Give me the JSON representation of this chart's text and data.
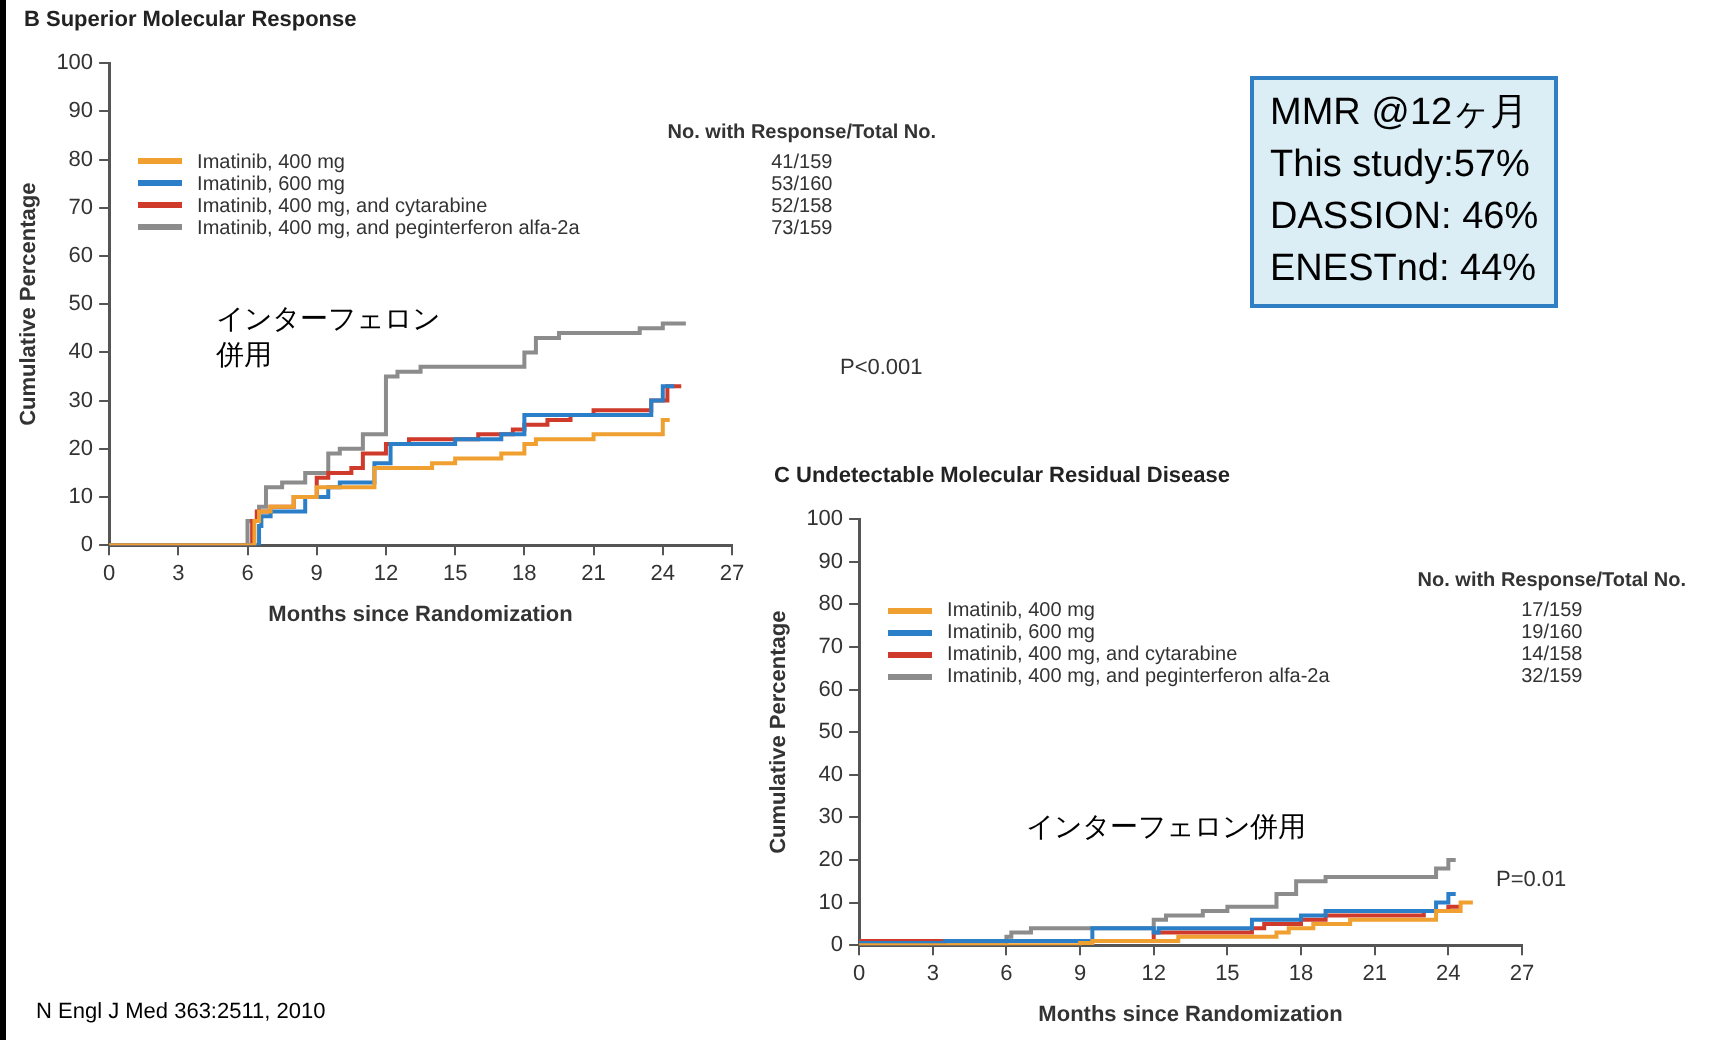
{
  "chart_data": [
    {
      "type": "step",
      "title": "B  Superior Molecular Response",
      "xlabel": "Months since Randomization",
      "ylabel": "Cumulative Percentage",
      "legend_title": "No. with Response/Total No.",
      "xlim": [
        0,
        27
      ],
      "ylim": [
        0,
        100
      ],
      "xticks": [
        0,
        3,
        6,
        9,
        12,
        15,
        18,
        21,
        24,
        27
      ],
      "yticks": [
        0,
        10,
        20,
        30,
        40,
        50,
        60,
        70,
        80,
        90,
        100
      ],
      "legend": "top left",
      "grid": false,
      "series": [
        {
          "name": "Imatinib, 400 mg",
          "color": "#f0a030",
          "x": [
            0,
            6.3,
            6.5,
            7,
            8,
            9,
            9.7,
            11.5,
            12.3,
            14,
            15,
            17,
            18,
            18.5,
            19,
            21,
            22,
            24,
            24.3
          ],
          "values": [
            0,
            0,
            5,
            7,
            8,
            10,
            12,
            12,
            16,
            16,
            17,
            18,
            19,
            21,
            22,
            22,
            23,
            23,
            26
          ]
        },
        {
          "name": "Imatinib, 600 mg",
          "color": "#2a7fc8",
          "x": [
            0,
            6.5,
            6.6,
            7,
            8.5,
            9.5,
            10,
            11.5,
            12.2,
            12.7,
            15,
            17,
            18,
            19,
            21,
            23.5,
            24,
            24.5
          ],
          "values": [
            0,
            0,
            4,
            6,
            7,
            10,
            12,
            13,
            17,
            21,
            21,
            22,
            23,
            27,
            27,
            27,
            30,
            33
          ]
        },
        {
          "name": "Imatinib, 400 mg, and cytarabine",
          "color": "#d03a2a",
          "x": [
            0,
            6.2,
            6.4,
            7,
            8,
            9,
            9.5,
            10.5,
            11,
            12,
            13,
            16,
            17.5,
            18,
            19,
            20,
            21,
            23.5,
            24.2,
            24.8
          ],
          "values": [
            0,
            0,
            5,
            7,
            8,
            10,
            14,
            15,
            16,
            19,
            21,
            22,
            23,
            24,
            25,
            26,
            27,
            28,
            30,
            33
          ]
        },
        {
          "name": "Imatinib, 400 mg, and peginterferon alfa-2a",
          "color": "#8c8c8c",
          "x": [
            0,
            6,
            6.5,
            6.8,
            7.5,
            8.5,
            9.5,
            10,
            11,
            12,
            12.5,
            13.5,
            15,
            18,
            18.5,
            19.5,
            21,
            23,
            24,
            25
          ],
          "values": [
            0,
            0,
            5,
            8,
            12,
            13,
            15,
            19,
            20,
            23,
            35,
            36,
            37,
            37,
            40,
            43,
            44,
            44,
            45,
            46
          ]
        }
      ],
      "annotations": [
        "41/159",
        "53/160",
        "52/158",
        "73/159",
        "P<0.001",
        "インターフェロン併用",
        "N Engl J Med 363:2511, 2010"
      ]
    },
    {
      "type": "other",
      "title": "MMR @12ヶ月",
      "annotations": [
        "This study:57%",
        "DASSION: 46%",
        "ENESTnd: 44%"
      ]
    },
    {
      "type": "step",
      "title": "C  Undetectable Molecular Residual Disease",
      "xlabel": "Months since Randomization",
      "ylabel": "Cumulative Percentage",
      "legend_title": "No. with Response/Total No.",
      "xlim": [
        0,
        27
      ],
      "ylim": [
        0,
        100
      ],
      "xticks": [
        0,
        3,
        6,
        9,
        12,
        15,
        18,
        21,
        24,
        27
      ],
      "yticks": [
        0,
        10,
        20,
        30,
        40,
        50,
        60,
        70,
        80,
        90,
        100
      ],
      "legend": "top left",
      "grid": false,
      "series": [
        {
          "name": "Imatinib, 400 mg",
          "color": "#f0a030",
          "x": [
            0,
            9,
            9.5,
            13,
            15,
            17,
            17.5,
            18.5,
            20,
            22,
            23.5,
            24.5,
            25
          ],
          "values": [
            0,
            0,
            0.5,
            1,
            2,
            2,
            3,
            4,
            5,
            6,
            6,
            8,
            10
          ]
        },
        {
          "name": "Imatinib, 600 mg",
          "color": "#2a7fc8",
          "x": [
            0,
            3.5,
            6.5,
            9.5,
            10,
            12,
            12.2,
            16,
            18,
            19,
            20,
            21,
            23.5,
            24,
            24.3
          ],
          "values": [
            0,
            0.5,
            1,
            1,
            4,
            4,
            3,
            4,
            6,
            7,
            8,
            8,
            8,
            10,
            12
          ]
        },
        {
          "name": "Imatinib, 400 mg, and cytarabine",
          "color": "#d03a2a",
          "x": [
            0,
            9.5,
            12,
            12.3,
            16,
            16.5,
            18,
            19,
            21,
            23,
            24,
            24.5
          ],
          "values": [
            0,
            1,
            1,
            3,
            3,
            4,
            5,
            6,
            7,
            7,
            8,
            9
          ]
        },
        {
          "name": "Imatinib, 400 mg, and peginterferon alfa-2a",
          "color": "#8c8c8c",
          "x": [
            0,
            6,
            6.2,
            7,
            9.5,
            12,
            12.5,
            14,
            15,
            16,
            17,
            17.8,
            19,
            20.5,
            23.5,
            24,
            24.3
          ],
          "values": [
            0,
            0,
            2,
            3,
            4,
            4,
            6,
            7,
            8,
            9,
            9,
            12,
            15,
            16,
            16,
            18,
            20
          ]
        }
      ],
      "annotations": [
        "17/159",
        "19/160",
        "14/158",
        "32/159",
        "P=0.01",
        "インターフェロン併用"
      ]
    }
  ]
}
